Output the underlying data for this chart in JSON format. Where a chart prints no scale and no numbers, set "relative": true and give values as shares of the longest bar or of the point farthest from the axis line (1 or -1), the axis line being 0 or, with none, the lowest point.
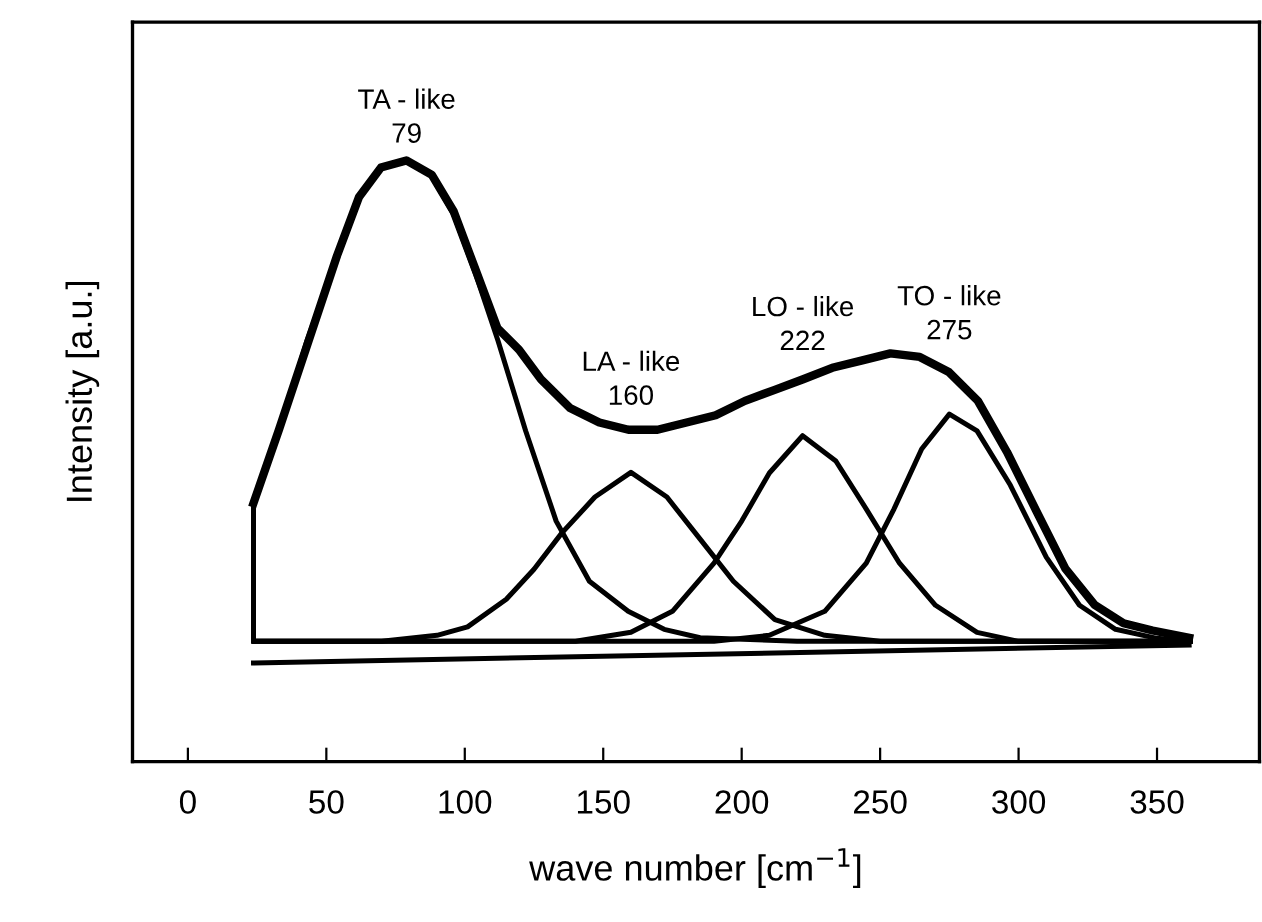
{
  "chart_data": {
    "type": "line",
    "relative": true,
    "xlabel": "wave number [cm$^{−1}$]",
    "ylabel": "Intensity [a.u.]",
    "xlim": [
      -20,
      387
    ],
    "xticks": [
      0,
      50,
      100,
      150,
      200,
      250,
      300,
      350
    ],
    "grid": false,
    "legend": false,
    "marker": "none",
    "line_style": "solid",
    "annotations": [
      {
        "text": "TA - like\n79",
        "x": 79,
        "y": 1.0
      },
      {
        "text": "LA - like\n160",
        "x": 160,
        "y": 0.552
      },
      {
        "text": "LO - like\n222",
        "x": 222,
        "y": 0.636
      },
      {
        "text": "TO - like\n275",
        "x": 275,
        "y": 0.648
      }
    ],
    "series": [
      {
        "color": "#000000",
        "x": [
          23.7,
          32.9,
          43.4,
          53.9,
          61.8,
          69.7,
          78.9,
          88.1,
          96.0,
          103.9,
          111.8,
          119.6,
          127.5,
          138.0,
          148.6,
          159.1,
          169.6,
          180.1,
          190.6,
          201.2,
          211.7,
          222.2,
          232.7,
          243.2,
          253.7,
          264.3,
          274.8,
          285.3,
          295.8,
          306.3,
          316.9,
          327.4,
          337.9,
          348.4,
          361.6
        ],
        "values": [
          0.43,
          0.552,
          0.697,
          0.842,
          0.939,
          0.988,
          1.0,
          0.976,
          0.915,
          0.818,
          0.721,
          0.685,
          0.636,
          0.588,
          0.564,
          0.552,
          0.552,
          0.564,
          0.576,
          0.6,
          0.618,
          0.636,
          0.655,
          0.667,
          0.679,
          0.673,
          0.648,
          0.6,
          0.515,
          0.418,
          0.321,
          0.261,
          0.23,
          0.218,
          0.206
        ]
      },
      {
        "color": "#000000",
        "x": [
          23.7,
          23.7,
          33,
          43,
          54,
          62,
          70,
          79,
          88,
          96,
          104,
          112,
          122,
          133,
          145,
          159,
          172,
          185,
          220,
          362
        ],
        "values": [
          0.2,
          0.43,
          0.55,
          0.7,
          0.84,
          0.94,
          0.99,
          1.0,
          0.975,
          0.91,
          0.81,
          0.7,
          0.55,
          0.4,
          0.3,
          0.25,
          0.22,
          0.206,
          0.2,
          0.2
        ]
      },
      {
        "color": "#000000",
        "x": [
          24,
          70,
          90,
          101,
          115,
          125,
          135,
          147,
          160,
          173,
          185,
          197,
          212,
          230,
          250,
          362
        ],
        "values": [
          0.2,
          0.2,
          0.21,
          0.224,
          0.27,
          0.32,
          0.38,
          0.44,
          0.481,
          0.44,
          0.37,
          0.3,
          0.236,
          0.21,
          0.2,
          0.2
        ]
      },
      {
        "color": "#000000",
        "x": [
          24,
          140,
          160,
          175,
          190,
          200,
          210,
          222,
          234,
          245,
          257,
          270,
          285,
          300,
          362
        ],
        "values": [
          0.2,
          0.2,
          0.215,
          0.25,
          0.33,
          0.4,
          0.48,
          0.542,
          0.5,
          0.42,
          0.33,
          0.26,
          0.215,
          0.2,
          0.2
        ]
      },
      {
        "color": "#000000",
        "x": [
          24,
          190,
          210,
          230,
          245,
          255,
          265,
          275,
          285,
          297,
          310,
          322,
          335,
          350,
          362
        ],
        "values": [
          0.2,
          0.2,
          0.21,
          0.25,
          0.33,
          0.42,
          0.52,
          0.578,
          0.55,
          0.46,
          0.34,
          0.26,
          0.22,
          0.205,
          0.2
        ]
      },
      {
        "color": "#000000",
        "x": [
          23.7,
          361.6
        ],
        "values": [
          0.164,
          0.194
        ]
      }
    ]
  }
}
